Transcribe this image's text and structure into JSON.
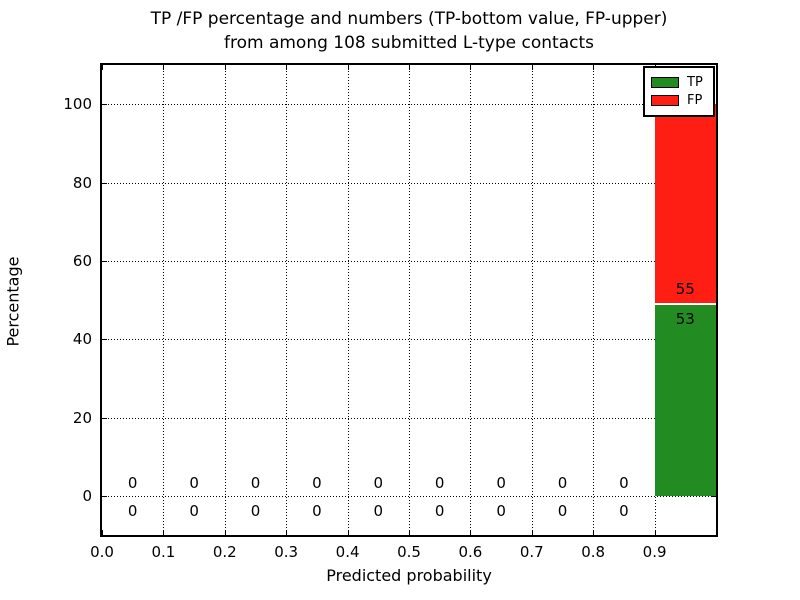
{
  "figure": {
    "title_line1": "TP /FP percentage and numbers (TP-bottom value, FP-upper)",
    "title_line2": "from among 108 submitted L-type contacts",
    "background_color": "#ffffff"
  },
  "chart_data": {
    "type": "bar",
    "stacked": true,
    "title": "TP /FP percentage and numbers (TP-bottom value, FP-upper)\nfrom among 108 submitted L-type contacts",
    "xlabel": "Predicted probability",
    "ylabel": "Percentage",
    "xlim": [
      0.0,
      1.0
    ],
    "ylim": [
      -10,
      110
    ],
    "xtick_labels": [
      "0.0",
      "0.1",
      "0.2",
      "0.3",
      "0.4",
      "0.5",
      "0.6",
      "0.7",
      "0.8",
      "0.9"
    ],
    "ytick_labels": [
      "0",
      "20",
      "40",
      "60",
      "80",
      "100"
    ],
    "bin_edges": [
      0.0,
      0.1,
      0.2,
      0.3,
      0.4,
      0.5,
      0.6,
      0.7,
      0.8,
      0.9,
      1.0
    ],
    "total_contacts": 108,
    "grid": "dotted",
    "axis_color": "#000000",
    "series": [
      {
        "name": "TP",
        "color": "#228b22",
        "counts": [
          0,
          0,
          0,
          0,
          0,
          0,
          0,
          0,
          0,
          53
        ],
        "percent_of_total": [
          0,
          0,
          0,
          0,
          0,
          0,
          0,
          0,
          0,
          49.07
        ]
      },
      {
        "name": "FP",
        "color": "#ff1e14",
        "counts": [
          0,
          0,
          0,
          0,
          0,
          0,
          0,
          0,
          0,
          55
        ],
        "percent_of_total": [
          0,
          0,
          0,
          0,
          0,
          0,
          0,
          0,
          0,
          50.93
        ]
      }
    ],
    "legend": {
      "position": "upper right",
      "entries": [
        "TP",
        "FP"
      ]
    }
  }
}
